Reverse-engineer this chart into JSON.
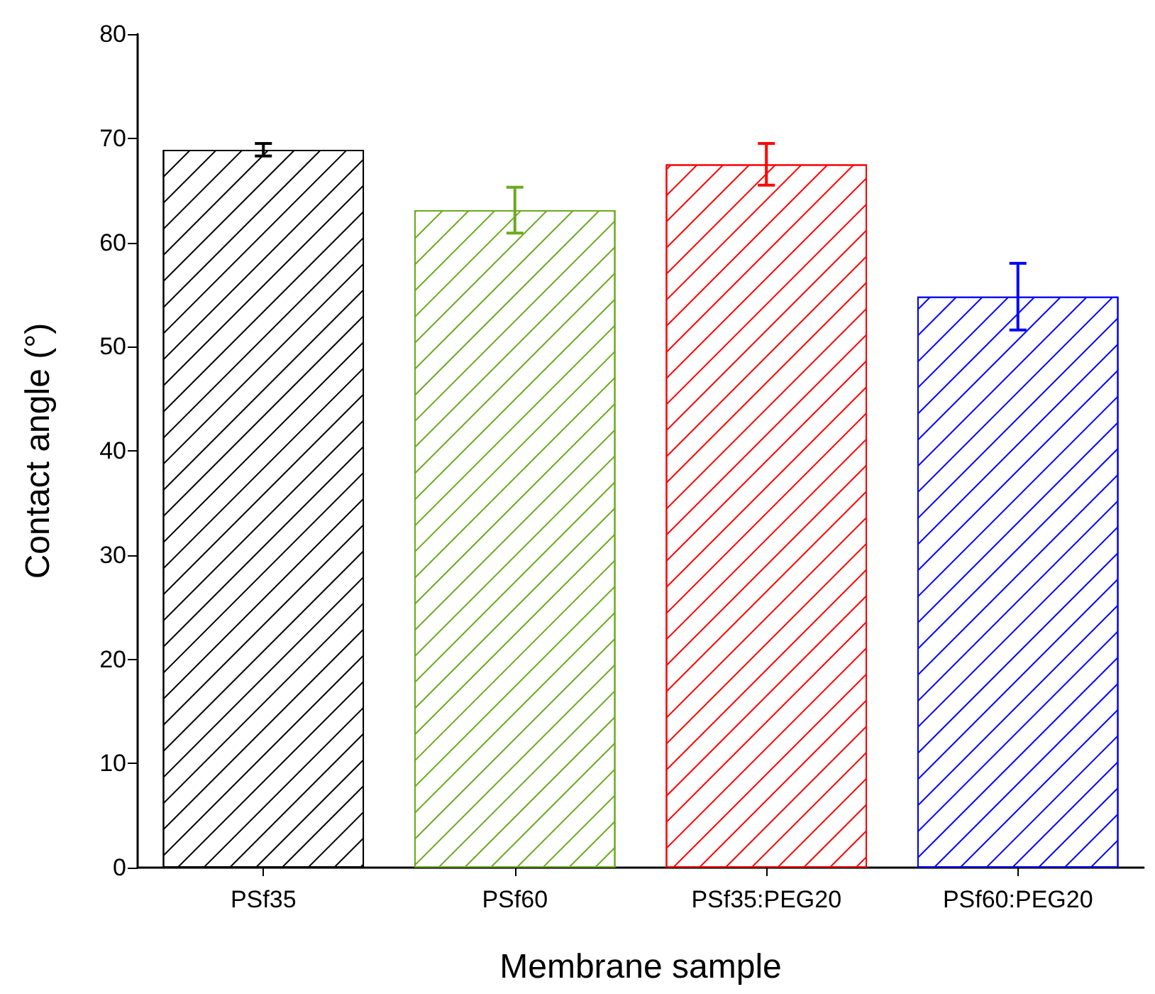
{
  "chart_data": {
    "type": "bar",
    "xlabel": "Membrane sample",
    "ylabel": "Contact angle (°)",
    "categories": [
      "PSf35",
      "PSf60",
      "PSf35:PEG20",
      "PSf60:PEG20"
    ],
    "values": [
      68.9,
      63.1,
      67.5,
      54.8
    ],
    "errors": [
      0.6,
      2.2,
      2.0,
      3.2
    ],
    "colors": [
      "#000000",
      "#6aaa1e",
      "#ff0000",
      "#0000ff"
    ],
    "ylim": [
      0,
      80
    ],
    "yticks": [
      0,
      10,
      20,
      30,
      40,
      50,
      60,
      70,
      80
    ],
    "grid": false
  }
}
